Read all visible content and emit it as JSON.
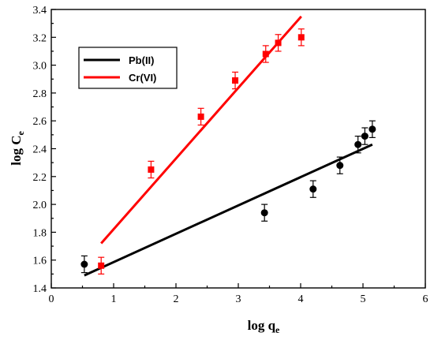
{
  "chart_data": {
    "type": "scatter",
    "xlabel": "log q",
    "xlabel_sub": "e",
    "ylabel": "log C",
    "ylabel_sub": "e",
    "xlim": [
      0,
      6
    ],
    "ylim": [
      1.4,
      3.4
    ],
    "x_ticks": [
      "0",
      "1",
      "2",
      "3",
      "4",
      "5",
      "6"
    ],
    "y_ticks": [
      "1.4",
      "1.6",
      "1.8",
      "2.0",
      "2.2",
      "2.4",
      "2.6",
      "2.8",
      "3.0",
      "3.2",
      "3.4"
    ],
    "legend_position": "top-left",
    "series": [
      {
        "name": "Pb(II)",
        "color": "#000000",
        "marker": "circle",
        "points": [
          {
            "x": 0.53,
            "y": 1.57,
            "err": 0.06
          },
          {
            "x": 3.42,
            "y": 1.94,
            "err": 0.06
          },
          {
            "x": 4.2,
            "y": 2.11,
            "err": 0.06
          },
          {
            "x": 4.63,
            "y": 2.28,
            "err": 0.06
          },
          {
            "x": 4.92,
            "y": 2.43,
            "err": 0.06
          },
          {
            "x": 5.03,
            "y": 2.49,
            "err": 0.06
          },
          {
            "x": 5.15,
            "y": 2.54,
            "err": 0.06
          }
        ],
        "fit": {
          "x": [
            0.53,
            5.15
          ],
          "y": [
            1.49,
            2.43
          ]
        }
      },
      {
        "name": "Cr(VI)",
        "color": "#ff0000",
        "marker": "square",
        "points": [
          {
            "x": 0.8,
            "y": 1.56,
            "err": 0.06
          },
          {
            "x": 1.6,
            "y": 2.25,
            "err": 0.06
          },
          {
            "x": 2.4,
            "y": 2.63,
            "err": 0.06
          },
          {
            "x": 2.95,
            "y": 2.89,
            "err": 0.06
          },
          {
            "x": 3.44,
            "y": 3.08,
            "err": 0.06
          },
          {
            "x": 3.64,
            "y": 3.16,
            "err": 0.06
          },
          {
            "x": 4.01,
            "y": 3.2,
            "err": 0.06
          }
        ],
        "fit": {
          "x": [
            0.8,
            4.01
          ],
          "y": [
            1.72,
            3.35
          ]
        }
      }
    ]
  }
}
